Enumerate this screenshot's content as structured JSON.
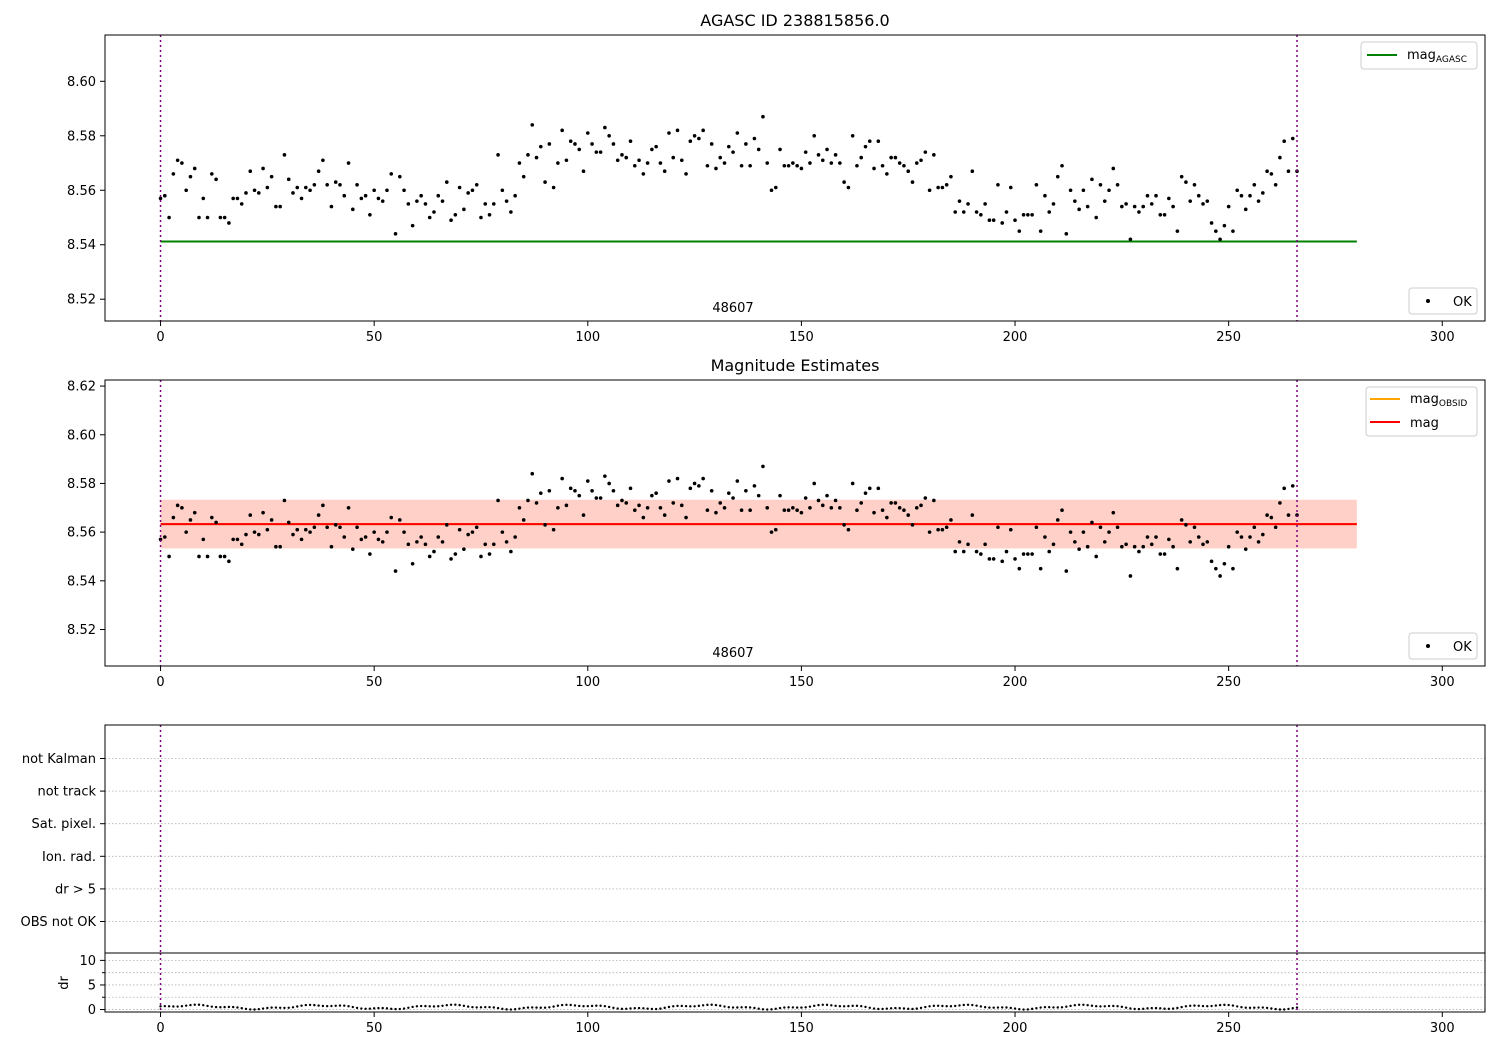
{
  "chart_data": [
    {
      "type": "scatter",
      "title": "AGASC ID 238815856.0",
      "xlim": [
        -13,
        310
      ],
      "ylim": [
        8.512,
        8.617
      ],
      "xticks": [
        0,
        50,
        100,
        150,
        200,
        250,
        300
      ],
      "xtick_labels": [
        "0",
        "50",
        "100",
        "150",
        "200",
        "250",
        "300"
      ],
      "yticks": [
        8.52,
        8.54,
        8.56,
        8.58,
        8.6
      ],
      "ytick_labels": [
        "8.52",
        "8.54",
        "8.56",
        "8.58",
        "8.60"
      ],
      "obsid_label": "48607",
      "obsid_label_x": 133,
      "obs_boundaries": [
        0,
        266
      ],
      "lines": [
        {
          "name": "mag_AGASC",
          "value": 8.5412,
          "x_range": [
            0,
            280
          ],
          "color": "#008000"
        }
      ],
      "legend_upper": [
        {
          "label": "mag",
          "subscript": "AGASC",
          "color": "#008000"
        }
      ],
      "legend_lower": [
        {
          "label": "OK"
        }
      ],
      "series_name": "OK",
      "mags": [
        8.557,
        8.558,
        8.55,
        8.566,
        8.571,
        8.57,
        8.56,
        8.565,
        8.568,
        8.55,
        8.557,
        8.55,
        8.566,
        8.564,
        8.55,
        8.55,
        8.548,
        8.557,
        8.557,
        8.555,
        8.559,
        8.567,
        8.56,
        8.559,
        8.568,
        8.561,
        8.565,
        8.554,
        8.554,
        8.573,
        8.564,
        8.559,
        8.561,
        8.557,
        8.561,
        8.56,
        8.562,
        8.567,
        8.571,
        8.562,
        8.554,
        8.563,
        8.562,
        8.558,
        8.57,
        8.553,
        8.562,
        8.557,
        8.558,
        8.551,
        8.56,
        8.557,
        8.556,
        8.56,
        8.566,
        8.544,
        8.565,
        8.56,
        8.555,
        8.547,
        8.556,
        8.558,
        8.555,
        8.55,
        8.552,
        8.558,
        8.556,
        8.563,
        8.549,
        8.551,
        8.561,
        8.553,
        8.559,
        8.56,
        8.562,
        8.55,
        8.555,
        8.551,
        8.555,
        8.573,
        8.56,
        8.556,
        8.552,
        8.558,
        8.57,
        8.565,
        8.573,
        8.584,
        8.572,
        8.576,
        8.563,
        8.577,
        8.561,
        8.57,
        8.582,
        8.571,
        8.578,
        8.577,
        8.575,
        8.567,
        8.581,
        8.577,
        8.574,
        8.574,
        8.583,
        8.58,
        8.577,
        8.571,
        8.573,
        8.572,
        8.578,
        8.569,
        8.571,
        8.566,
        8.57,
        8.575,
        8.576,
        8.57,
        8.567,
        8.581,
        8.572,
        8.582,
        8.571,
        8.566,
        8.578,
        8.58,
        8.579,
        8.582,
        8.569,
        8.577,
        8.568,
        8.572,
        8.57,
        8.576,
        8.574,
        8.581,
        8.569,
        8.577,
        8.569,
        8.579,
        8.575,
        8.587,
        8.57,
        8.56,
        8.561,
        8.575,
        8.569,
        8.569,
        8.57,
        8.569,
        8.568,
        8.574,
        8.57,
        8.58,
        8.573,
        8.571,
        8.575,
        8.57,
        8.573,
        8.57,
        8.563,
        8.561,
        8.58,
        8.569,
        8.572,
        8.576,
        8.578,
        8.568,
        8.578,
        8.569,
        8.566,
        8.572,
        8.572,
        8.57,
        8.569,
        8.567,
        8.563,
        8.57,
        8.571,
        8.574,
        8.56,
        8.573,
        8.561,
        8.561,
        8.562,
        8.565,
        8.552,
        8.556,
        8.552,
        8.555,
        8.567,
        8.552,
        8.551,
        8.555,
        8.549,
        8.549,
        8.562,
        8.548,
        8.552,
        8.561,
        8.549,
        8.545,
        8.551,
        8.551,
        8.551,
        8.562,
        8.545,
        8.558,
        8.552,
        8.555,
        8.565,
        8.569,
        8.544,
        8.56,
        8.556,
        8.553,
        8.56,
        8.554,
        8.564,
        8.55,
        8.562,
        8.556,
        8.56,
        8.568,
        8.562,
        8.554,
        8.555,
        8.542,
        8.554,
        8.552,
        8.554,
        8.558,
        8.555,
        8.558,
        8.551,
        8.551,
        8.557,
        8.554,
        8.545,
        8.565,
        8.563,
        8.556,
        8.562,
        8.558,
        8.555,
        8.556,
        8.548,
        8.545,
        8.542,
        8.547,
        8.554,
        8.545,
        8.56,
        8.558,
        8.553,
        8.558,
        8.562,
        8.556,
        8.559,
        8.567,
        8.566,
        8.562,
        8.572,
        8.578,
        8.567,
        8.579,
        8.567
      ]
    },
    {
      "type": "scatter",
      "title": "Magnitude Estimates",
      "xlim": [
        -13,
        310
      ],
      "ylim": [
        8.505,
        8.6225
      ],
      "xticks": [
        0,
        50,
        100,
        150,
        200,
        250,
        300
      ],
      "xtick_labels": [
        "0",
        "50",
        "100",
        "150",
        "200",
        "250",
        "300"
      ],
      "yticks": [
        8.52,
        8.54,
        8.56,
        8.58,
        8.6,
        8.62
      ],
      "ytick_labels": [
        "8.52",
        "8.54",
        "8.56",
        "8.58",
        "8.60",
        "8.62"
      ],
      "obsid_label": "48607",
      "obsid_label_x": 133,
      "obs_boundaries": [
        0,
        266
      ],
      "band": {
        "center": 8.5633,
        "half_width": 0.01,
        "x_range": [
          0,
          280
        ]
      },
      "lines": [
        {
          "name": "mag_OBSID",
          "value": 8.5633,
          "x_range": [
            0,
            280
          ],
          "color": "#ffa500"
        },
        {
          "name": "mag",
          "value": 8.5633,
          "x_range": [
            0,
            280
          ],
          "color": "#ff0000"
        }
      ],
      "legend_upper": [
        {
          "label": "mag",
          "subscript": "OBSID",
          "color": "#ffa500"
        },
        {
          "label": "mag",
          "subscript": "",
          "color": "#ff0000"
        }
      ],
      "legend_lower": [
        {
          "label": "OK"
        }
      ],
      "series_name": "OK",
      "mags_source": "same as panel 1"
    },
    {
      "type": "scatter",
      "title": "",
      "xlim": [
        -13,
        310
      ],
      "categories": [
        "OBS not OK",
        "dr > 5",
        "Ion. rad.",
        "Sat. pixel.",
        "not track",
        "not Kalman"
      ],
      "obs_boundaries": [
        0,
        266
      ],
      "flags": []
    },
    {
      "type": "scatter",
      "title": "",
      "ylabel": "dr",
      "xlim": [
        -13,
        310
      ],
      "ylim": [
        -0.5,
        11.5
      ],
      "xticks": [
        0,
        50,
        100,
        150,
        200,
        250,
        300
      ],
      "xtick_labels": [
        "0",
        "50",
        "100",
        "150",
        "200",
        "250",
        "300"
      ],
      "yticks": [
        0,
        5,
        10
      ],
      "ytick_labels": [
        "0",
        "5",
        "10"
      ],
      "obs_boundaries": [
        0,
        266
      ],
      "dr_mean": 0.5
    }
  ]
}
